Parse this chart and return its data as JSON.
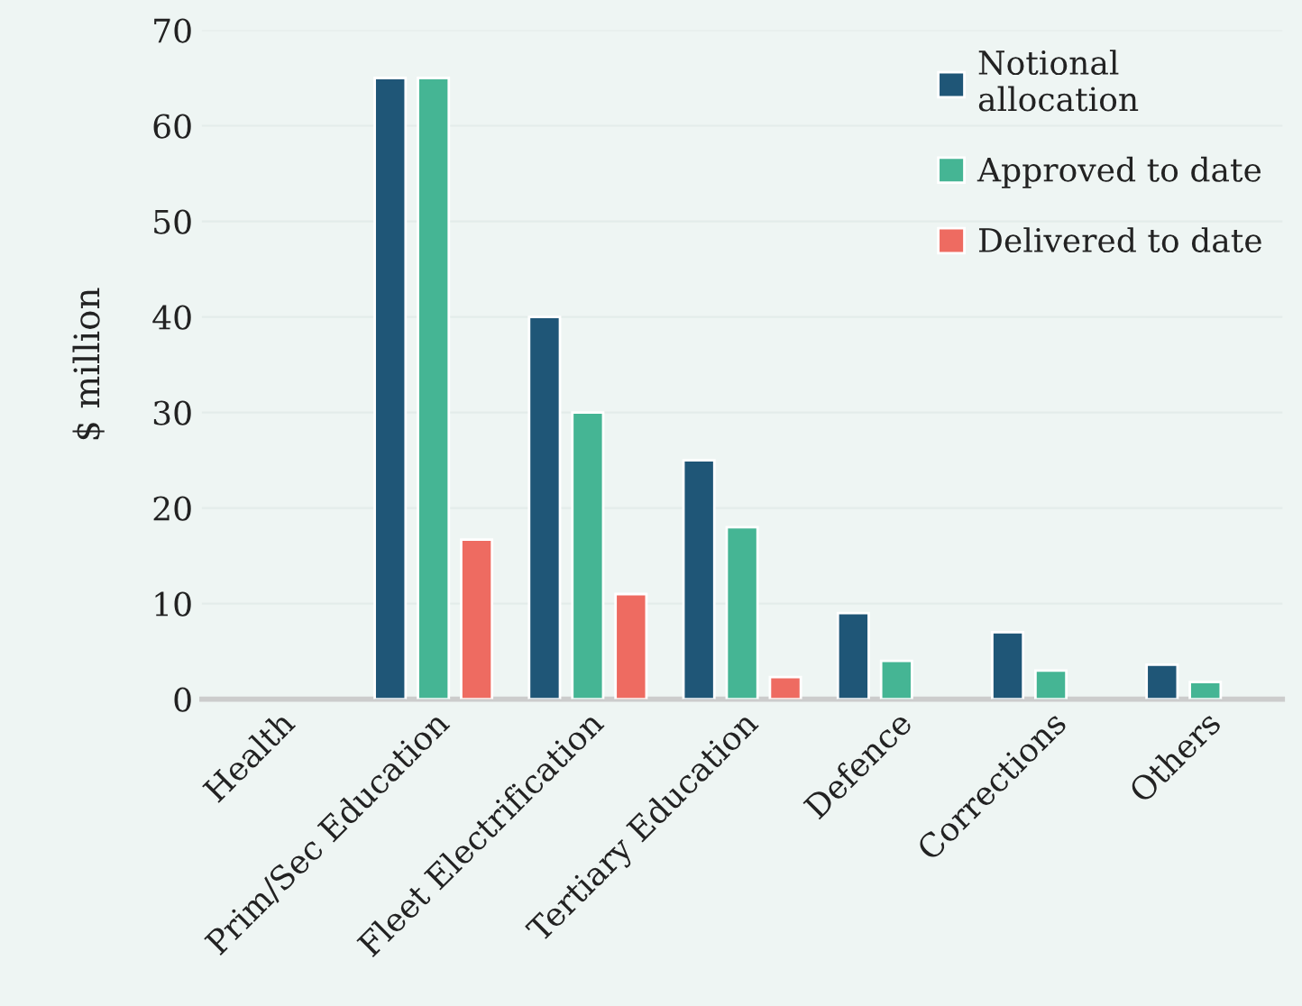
{
  "chart_data": {
    "type": "bar",
    "ylabel": "$ million",
    "categories": [
      "Health",
      "Prim/Sec Education",
      "Fleet Electrification",
      "Tertiary Education",
      "Defence",
      "Corrections",
      "Others"
    ],
    "series": [
      {
        "name": "Notional\nallocation",
        "color": "#1f5677",
        "values": [
          null,
          65,
          40,
          25,
          9,
          7,
          3.6
        ]
      },
      {
        "name": "Approved to date",
        "color": "#45b594",
        "values": [
          null,
          65,
          30,
          18,
          4,
          3,
          1.8
        ]
      },
      {
        "name": "Delivered to date",
        "color": "#ee6b61",
        "values": [
          null,
          16.7,
          11,
          2.3,
          null,
          null,
          null
        ]
      }
    ],
    "ylim": [
      0,
      70
    ],
    "yticks": [
      0,
      10,
      20,
      30,
      40,
      50,
      60,
      70
    ],
    "grid": "y",
    "legend": "top right"
  }
}
